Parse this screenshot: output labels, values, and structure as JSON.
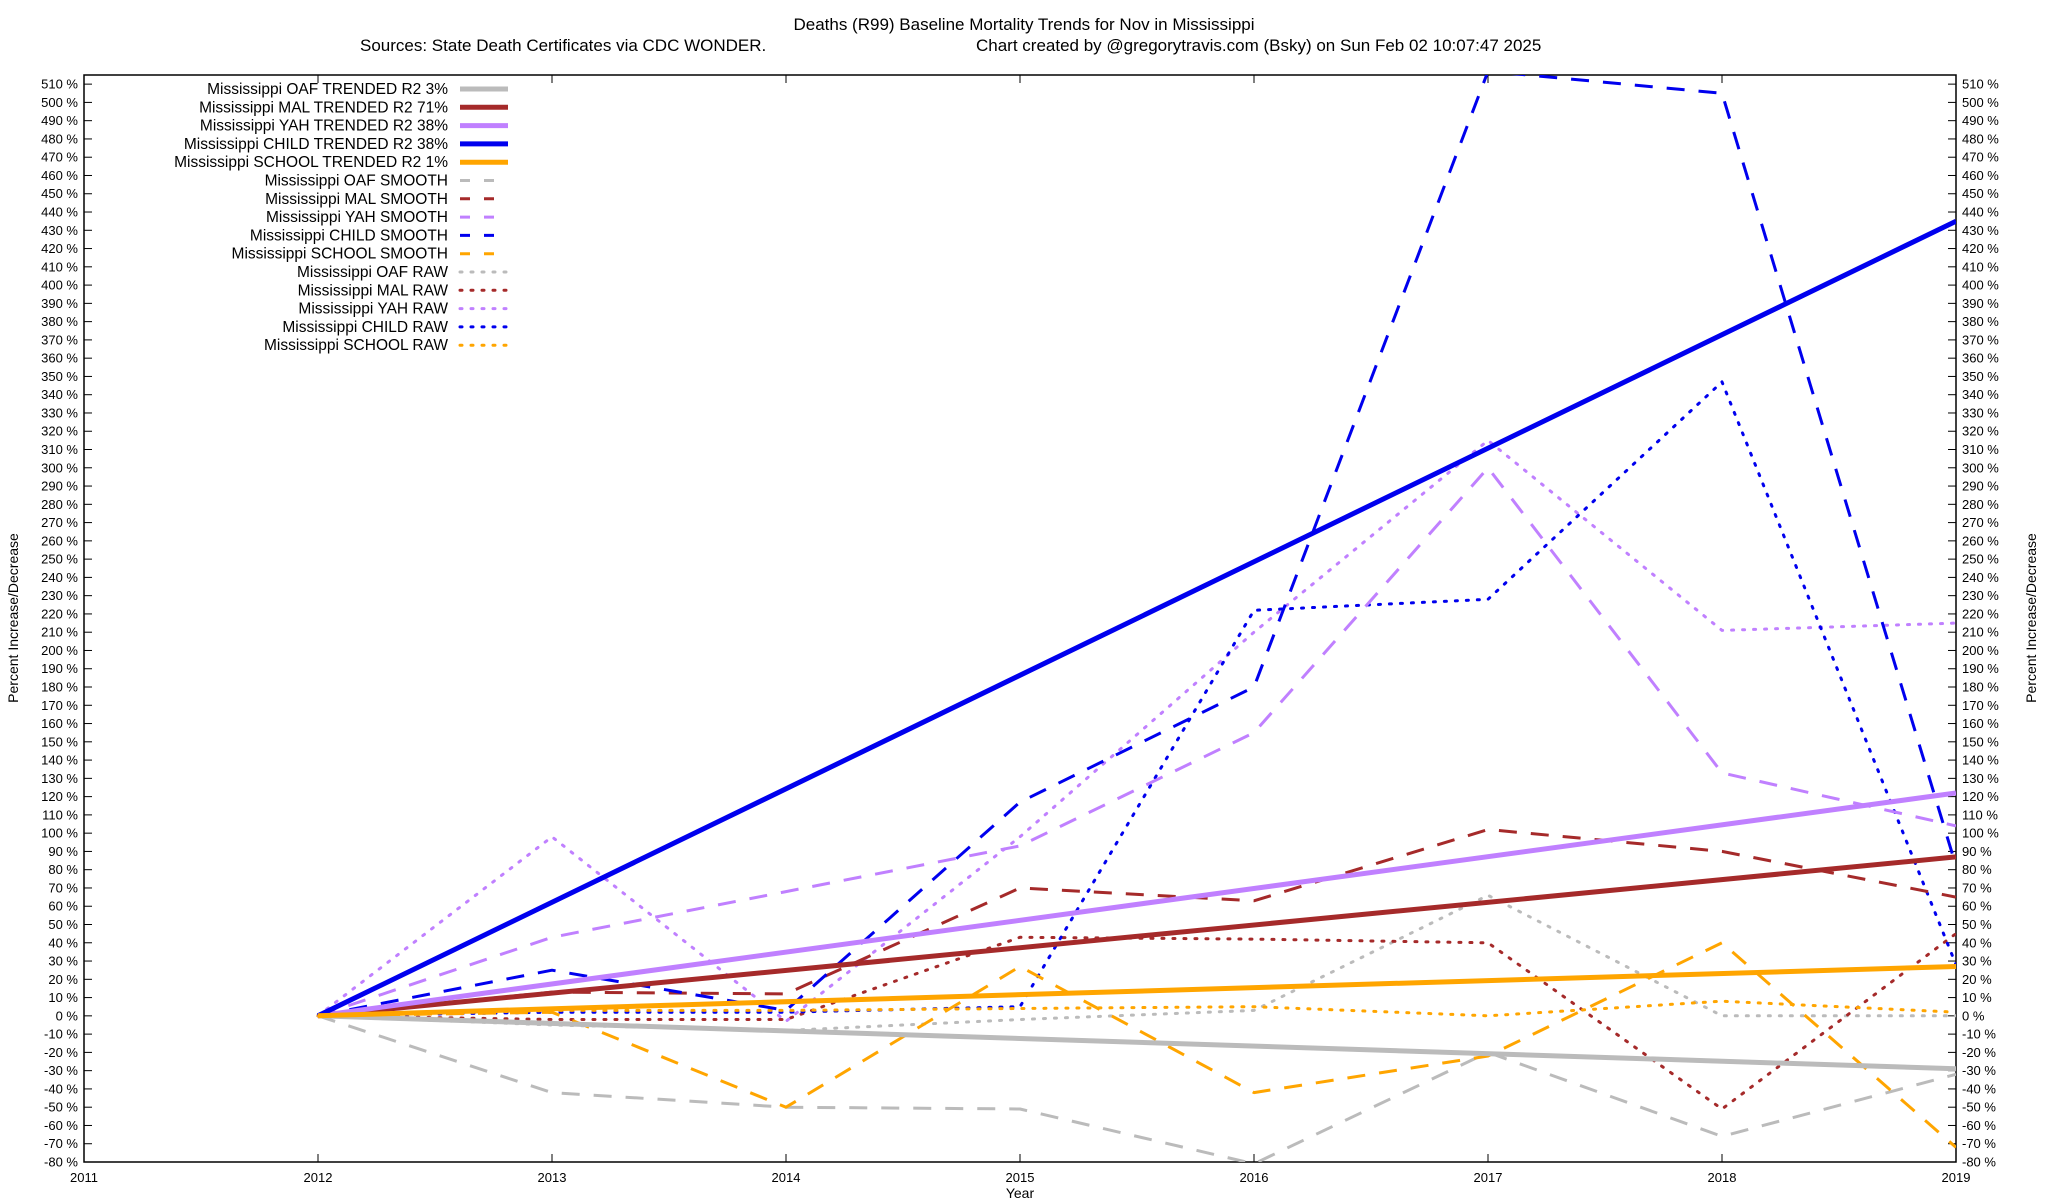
{
  "chart_data": {
    "type": "line",
    "title": "Deaths (R99)  Baseline Mortality Trends for Nov in Mississippi",
    "subtitle_left": "Sources: State Death Certificates via CDC WONDER.",
    "subtitle_right": "Chart created by @gregorytravis.com (Bsky) on Sun Feb 02 10:07:47 2025",
    "xlabel": "Year",
    "ylabel": "Percent Increase/Decrease",
    "ylabel_right": "Percent Increase/Decrease",
    "xlim": [
      2011,
      2019
    ],
    "ylim": [
      -80,
      515
    ],
    "x_ticks": [
      "2011",
      "2012",
      "2013",
      "2014",
      "2015",
      "2016",
      "2017",
      "2018",
      "2019"
    ],
    "y_tick_step": 10,
    "y_tick_suffix": " %",
    "legend_position": "top-left",
    "grid": false,
    "series": [
      {
        "name": "Mississippi OAF TRENDED R2",
        "r2": "3%",
        "style": "solid",
        "color": "#bbbbbb",
        "x": [
          2012,
          2019
        ],
        "y": [
          0,
          -29
        ]
      },
      {
        "name": "Mississippi MAL TRENDED R2",
        "r2": "71%",
        "style": "solid",
        "color": "#a52a2a",
        "x": [
          2012,
          2019
        ],
        "y": [
          0,
          87
        ]
      },
      {
        "name": "Mississippi YAH TRENDED R2",
        "r2": "38%",
        "style": "solid",
        "color": "#c080ff",
        "x": [
          2012,
          2019
        ],
        "y": [
          0,
          122
        ]
      },
      {
        "name": "Mississippi CHILD TRENDED R2",
        "r2": "38%",
        "style": "solid",
        "color": "#0000ee",
        "x": [
          2012,
          2019
        ],
        "y": [
          0,
          435
        ]
      },
      {
        "name": "Mississippi SCHOOL TRENDED R2",
        "r2": "1%",
        "style": "solid",
        "color": "#ffa500",
        "x": [
          2012,
          2019
        ],
        "y": [
          0,
          27
        ]
      },
      {
        "name": "Mississippi OAF SMOOTH",
        "style": "dashed",
        "color": "#bbbbbb",
        "x": [
          2012,
          2013,
          2014,
          2015,
          2016,
          2017,
          2018,
          2019
        ],
        "y": [
          0,
          -42,
          -50,
          -51,
          -81,
          -20,
          -66,
          -32
        ]
      },
      {
        "name": "Mississippi MAL SMOOTH",
        "style": "dashed",
        "color": "#a52a2a",
        "x": [
          2012,
          2013,
          2014,
          2015,
          2016,
          2017,
          2018,
          2019
        ],
        "y": [
          0,
          13,
          12,
          70,
          63,
          102,
          90,
          65
        ]
      },
      {
        "name": "Mississippi YAH SMOOTH",
        "style": "dashed",
        "color": "#c080ff",
        "x": [
          2012,
          2013,
          2014,
          2015,
          2016,
          2017,
          2018,
          2019
        ],
        "y": [
          0,
          43,
          68,
          93,
          155,
          300,
          133,
          104
        ]
      },
      {
        "name": "Mississippi CHILD SMOOTH",
        "style": "dashed",
        "color": "#0000ee",
        "x": [
          2012,
          2013,
          2014,
          2015,
          2016,
          2017,
          2018,
          2019
        ],
        "y": [
          0,
          25,
          3,
          117,
          180,
          517,
          505,
          82
        ]
      },
      {
        "name": "Mississippi SCHOOL SMOOTH",
        "style": "dashed",
        "color": "#ffa500",
        "x": [
          2012,
          2013,
          2014,
          2015,
          2016,
          2017,
          2018,
          2019
        ],
        "y": [
          0,
          2,
          -50,
          27,
          -42,
          -22,
          40,
          -72
        ]
      },
      {
        "name": "Mississippi OAF RAW",
        "style": "dotted",
        "color": "#bbbbbb",
        "x": [
          2012,
          2013,
          2014,
          2015,
          2016,
          2017,
          2018,
          2019
        ],
        "y": [
          0,
          -5,
          -8,
          -2,
          3,
          66,
          0,
          0
        ]
      },
      {
        "name": "Mississippi MAL RAW",
        "style": "dotted",
        "color": "#a52a2a",
        "x": [
          2012,
          2013,
          2014,
          2015,
          2016,
          2017,
          2018,
          2019
        ],
        "y": [
          0,
          -2,
          -2,
          43,
          42,
          40,
          -51,
          45
        ]
      },
      {
        "name": "Mississippi YAH RAW",
        "style": "dotted",
        "color": "#c080ff",
        "x": [
          2012,
          2013,
          2014,
          2015,
          2016,
          2017,
          2018,
          2019
        ],
        "y": [
          0,
          98,
          -3,
          98,
          210,
          315,
          211,
          215
        ]
      },
      {
        "name": "Mississippi CHILD RAW",
        "style": "dotted",
        "color": "#0000ee",
        "x": [
          2012,
          2013,
          2014,
          2015,
          2016,
          2017,
          2018,
          2019
        ],
        "y": [
          0,
          2,
          2,
          5,
          222,
          228,
          347,
          28
        ]
      },
      {
        "name": "Mississippi SCHOOL RAW",
        "style": "dotted",
        "color": "#ffa500",
        "x": [
          2012,
          2013,
          2014,
          2015,
          2016,
          2017,
          2018,
          2019
        ],
        "y": [
          0,
          3,
          3,
          4,
          5,
          0,
          8,
          2
        ]
      }
    ]
  }
}
